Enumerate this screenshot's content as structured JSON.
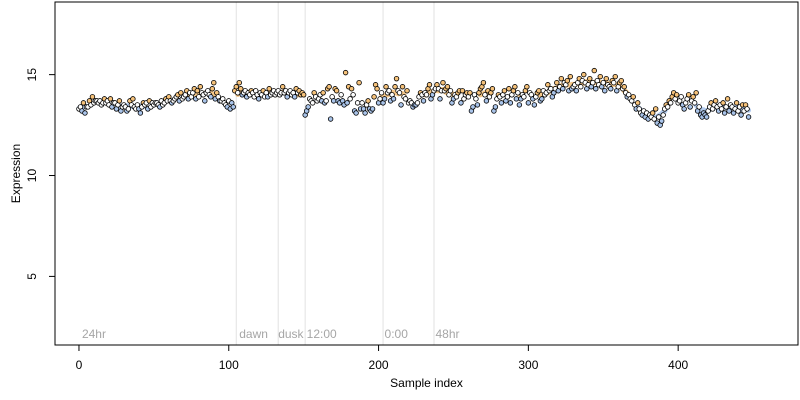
{
  "chart_data": {
    "type": "scatter",
    "title": "",
    "xlabel": "Sample index",
    "ylabel": "Expression",
    "xlim": [
      -16,
      480
    ],
    "ylim": [
      1.6,
      18.6
    ],
    "xticks": [
      0,
      100,
      200,
      300,
      400
    ],
    "yticks": [
      5,
      10,
      15
    ],
    "grid": false,
    "legend": "none",
    "colors": {
      "high": "#f6c27a",
      "low": "#a9c4ea",
      "neutral": "#ffffff",
      "point_edge": "#000000",
      "trend_high": "#f7c98a",
      "trend_low": "#b3ccef",
      "separator": "#e2e2e2",
      "annotation": "#a6a6a6"
    },
    "annotations": [
      {
        "x": 2,
        "label": "24hr"
      },
      {
        "x": 107,
        "label": "dawn"
      },
      {
        "x": 133,
        "label": "dusk"
      },
      {
        "x": 152,
        "label": "12:00"
      },
      {
        "x": 204,
        "label": "0:00"
      },
      {
        "x": 238,
        "label": "48hr"
      }
    ],
    "separators": [
      105,
      133,
      151,
      203,
      237
    ],
    "series": [
      {
        "x_start": 0,
        "x_step": 1,
        "values": [
          13.3,
          13.4,
          13.2,
          13.6,
          13.1,
          13.4,
          13.4,
          13.7,
          13.5,
          13.9,
          13.6,
          13.7,
          13.7,
          13.6,
          13.7,
          13.5,
          13.6,
          13.8,
          13.6,
          13.7,
          13.5,
          13.8,
          13.4,
          13.6,
          13.6,
          13.3,
          13.5,
          13.7,
          13.2,
          13.4,
          13.5,
          13.4,
          13.2,
          13.3,
          13.7,
          13.5,
          13.8,
          13.4,
          13.3,
          13.5,
          13.3,
          13.1,
          13.4,
          13.6,
          13.5,
          13.6,
          13.3,
          13.7,
          13.4,
          13.6,
          13.5,
          13.6,
          13.6,
          13.5,
          13.4,
          13.7,
          13.5,
          13.6,
          13.8,
          13.7,
          13.9,
          13.7,
          13.6,
          13.7,
          13.8,
          13.9,
          14.0,
          13.7,
          14.1,
          13.8,
          13.9,
          14.0,
          14.2,
          13.8,
          14.1,
          13.9,
          14.1,
          14.3,
          13.8,
          14.2,
          13.9,
          14.4,
          14.1,
          14.0,
          13.7,
          14.1,
          14.2,
          14.0,
          13.9,
          14.3,
          14.6,
          13.8,
          14.1,
          13.9,
          13.7,
          13.7,
          13.8,
          13.6,
          13.5,
          13.4,
          13.7,
          13.3,
          13.6,
          13.4,
          14.2,
          14.4,
          14.1,
          14.6,
          14.3,
          14.0,
          14.1,
          14.2,
          13.9,
          14.1,
          14.0,
          14.2,
          14.1,
          13.9,
          14.2,
          14.0,
          13.8,
          14.1,
          14.0,
          14.2,
          13.9,
          14.1,
          13.9,
          14.3,
          14.0,
          14.1,
          14.2,
          14.0,
          14.1,
          14.2,
          14.0,
          14.1,
          14.4,
          14.1,
          14.2,
          13.9,
          14.1,
          14.2,
          14.0,
          14.1,
          13.9,
          14.3,
          14.1,
          14.2,
          14.0,
          14.1,
          14.0,
          13.0,
          13.2,
          13.4,
          13.8,
          13.7,
          13.6,
          14.1,
          13.9,
          13.7,
          13.8,
          14.0,
          13.7,
          14.1,
          13.6,
          13.7,
          14.3,
          14.4,
          12.8,
          13.9,
          13.7,
          14.3,
          14.2,
          13.7,
          13.6,
          14.0,
          13.7,
          13.5,
          15.1,
          13.6,
          14.4,
          13.8,
          14.3,
          14.0,
          13.2,
          13.1,
          13.6,
          14.6,
          13.3,
          13.6,
          13.3,
          13.1,
          13.5,
          13.7,
          13.3,
          13.2,
          13.3,
          13.9,
          14.5,
          14.3,
          13.6,
          13.8,
          14.1,
          13.6,
          13.8,
          14.4,
          14.1,
          14.2,
          13.7,
          14.0,
          13.8,
          14.4,
          14.8,
          14.2,
          14.1,
          13.5,
          14.4,
          13.9,
          13.8,
          14.2,
          13.6,
          13.7,
          13.6,
          13.4,
          13.5,
          13.5,
          13.6,
          13.9,
          14.1,
          14.0,
          13.7,
          14.1,
          14.0,
          14.3,
          14.5,
          13.8,
          14.0,
          14.2,
          14.3,
          14.5,
          14.3,
          13.8,
          14.2,
          14.6,
          14.2,
          14.3,
          14.4,
          14.0,
          14.2,
          13.6,
          13.8,
          14.0,
          13.9,
          14.1,
          14.2,
          13.6,
          14.2,
          13.8,
          14.0,
          14.1,
          13.9,
          14.1,
          13.2,
          13.4,
          14.0,
          13.8,
          13.5,
          14.1,
          14.3,
          14.4,
          14.6,
          14.0,
          13.7,
          14.2,
          13.9,
          14.1,
          14.3,
          13.2,
          13.4,
          13.8,
          14.0,
          13.9,
          13.6,
          14.0,
          14.2,
          13.7,
          13.9,
          14.3,
          13.6,
          14.0,
          14.2,
          14.4,
          13.8,
          14.1,
          13.5,
          13.8,
          14.0,
          13.9,
          14.2,
          14.4,
          13.6,
          14.1,
          14.0,
          13.8,
          13.5,
          13.9,
          14.1,
          14.2,
          13.7,
          13.8,
          14.2,
          14.0,
          14.1,
          14.5,
          14.2,
          14.3,
          13.9,
          14.1,
          14.3,
          14.6,
          14.2,
          14.4,
          14.8,
          14.3,
          14.6,
          14.5,
          14.7,
          14.2,
          14.9,
          14.3,
          14.4,
          14.5,
          14.2,
          14.6,
          14.8,
          14.4,
          14.7,
          15.0,
          14.6,
          14.3,
          14.5,
          14.8,
          14.4,
          14.6,
          15.2,
          14.3,
          14.7,
          14.5,
          14.9,
          14.4,
          14.6,
          14.2,
          14.8,
          14.5,
          14.4,
          14.3,
          14.7,
          14.6,
          14.9,
          14.2,
          14.4,
          14.6,
          14.7,
          14.3,
          14.4,
          14.1,
          13.9,
          14.0,
          13.8,
          13.7,
          13.9,
          13.5,
          13.3,
          13.6,
          13.3,
          13.1,
          13.0,
          13.2,
          12.9,
          13.1,
          12.8,
          13.0,
          12.9,
          13.1,
          12.8,
          13.3,
          12.6,
          12.9,
          12.5,
          12.7,
          13.0,
          13.3,
          13.5,
          13.4,
          13.7,
          13.6,
          13.9,
          14.1,
          13.8,
          14.0,
          13.6,
          13.7,
          13.9,
          13.5,
          13.3,
          13.6,
          13.8,
          14.0,
          13.4,
          13.7,
          13.9,
          13.6,
          14.1,
          13.2,
          13.4,
          13.0,
          12.9,
          13.1,
          13.0,
          12.9,
          13.2,
          13.4,
          13.6,
          13.3,
          13.5,
          13.7,
          13.4,
          13.2,
          13.5,
          13.3,
          13.6,
          13.1,
          13.4,
          13.8,
          13.2,
          13.5,
          13.4,
          13.1,
          13.3,
          13.6,
          13.2,
          13.4,
          13.0,
          13.5,
          13.2,
          13.5,
          13.3,
          12.9
        ]
      }
    ]
  }
}
